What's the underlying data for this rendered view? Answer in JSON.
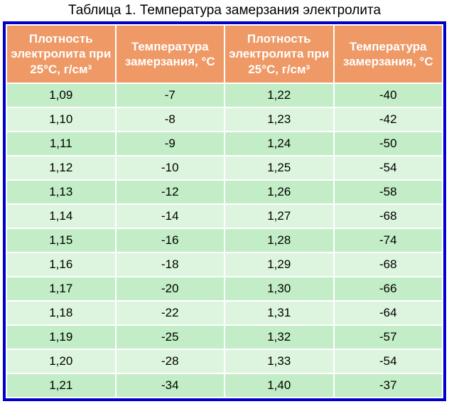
{
  "title": "Таблица 1. Температура замерзания электролита",
  "table": {
    "type": "table",
    "header_bg": "#ee9966",
    "header_fg": "#ffffff",
    "row_colors": [
      "#c3edc6",
      "#ddf5de"
    ],
    "border_color": "#0000cc",
    "cell_border": "#ffffff",
    "text_color": "#000000",
    "font_size_header": 17,
    "font_size_cell": 17,
    "columns": [
      "Плотность электролита при 25°С, г/см³",
      "Температура замерзания, °С",
      "Плотность электролита при 25°С, г/см³",
      "Температура замерзания, °С"
    ],
    "rows": [
      [
        "1,09",
        "-7",
        "1,22",
        "-40"
      ],
      [
        "1,10",
        "-8",
        "1,23",
        "-42"
      ],
      [
        "1,11",
        "-9",
        "1,24",
        "-50"
      ],
      [
        "1,12",
        "-10",
        "1,25",
        "-54"
      ],
      [
        "1,13",
        "-12",
        "1,26",
        "-58"
      ],
      [
        "1,14",
        "-14",
        "1,27",
        "-68"
      ],
      [
        "1,15",
        "-16",
        "1,28",
        "-74"
      ],
      [
        "1,16",
        "-18",
        "1,29",
        "-68"
      ],
      [
        "1,17",
        "-20",
        "1,30",
        "-66"
      ],
      [
        "1,18",
        "-22",
        "1,31",
        "-64"
      ],
      [
        "1,19",
        "-25",
        "1,32",
        "-57"
      ],
      [
        "1,20",
        "-28",
        "1,33",
        "-54"
      ],
      [
        "1,21",
        "-34",
        "1,40",
        "-37"
      ]
    ]
  }
}
